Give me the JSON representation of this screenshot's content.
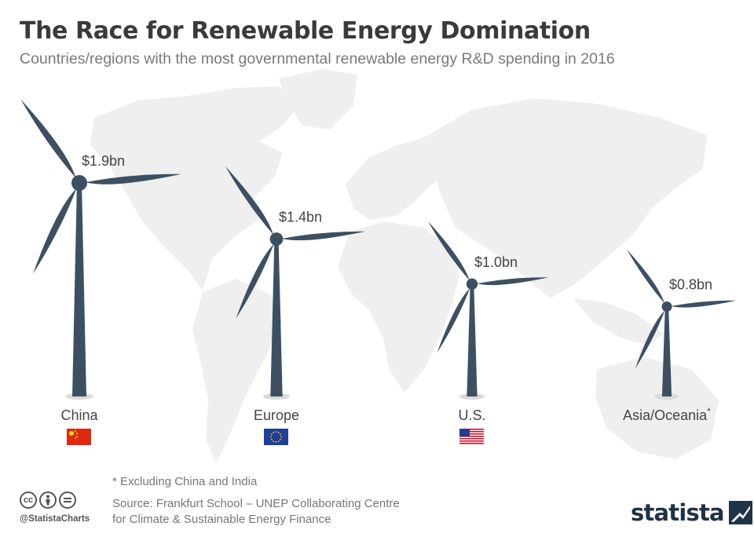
{
  "header": {
    "title": "The Race for Renewable Energy Domination",
    "subtitle": "Countries/regions with the most governmental renewable energy R&D spending in 2016"
  },
  "chart_data": {
    "type": "bar",
    "title": "The Race for Renewable Energy Domination",
    "subtitle": "Countries/regions with the most governmental renewable energy R&D spending in 2016",
    "unit": "billion US$",
    "categories": [
      "China",
      "Europe",
      "U.S.",
      "Asia/Oceania"
    ],
    "values": [
      1.9,
      1.4,
      1.0,
      0.8
    ],
    "value_labels": [
      "$1.9bn",
      "$1.4bn",
      "$1.0bn",
      "$0.8bn"
    ],
    "category_markers": [
      "",
      "",
      "",
      "*"
    ],
    "flags": [
      "china-flag-icon",
      "eu-flag-icon",
      "us-flag-icon",
      ""
    ],
    "mark_style": "wind-turbine",
    "mark_color": "#3d5062",
    "background": "world-map",
    "grid": false
  },
  "footer": {
    "footnote": "* Excluding China and India",
    "source_line1": "Source: Frankfurt School – UNEP Collaborating Centre",
    "source_line2": "for Climate & Sustainable Energy Finance",
    "handle": "@StatistaCharts",
    "cc_icons": [
      "cc",
      "by",
      "nd"
    ],
    "brand": "statista"
  },
  "colors": {
    "turbine": "#3d5062",
    "map": "#ececec",
    "title": "#3a3a3a",
    "subtitle": "#7a7a7a",
    "brand": "#1f3346"
  }
}
